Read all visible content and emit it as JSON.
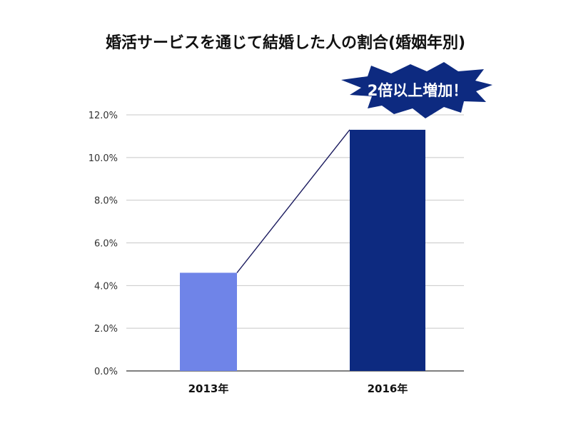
{
  "chart_data": {
    "type": "bar",
    "title": "婚活サービスを通じて結婚した人の割合(婚姻年別)",
    "categories": [
      "2013年",
      "2016年"
    ],
    "values": [
      4.6,
      11.3
    ],
    "ylim": [
      0,
      12
    ],
    "yticks": [
      "0.0%",
      "2.0%",
      "4.0%",
      "6.0%",
      "8.0%",
      "10.0%",
      "12.0%"
    ],
    "grid": true,
    "bar_colors": [
      "#6f84e8",
      "#0d2a80"
    ],
    "connector_line": true,
    "annotation": "2倍以上増加！"
  },
  "colors": {
    "grid": "#c8c8c8",
    "axis": "#333333",
    "connector": "#1a1a5e",
    "burst": "#0d2a80"
  }
}
